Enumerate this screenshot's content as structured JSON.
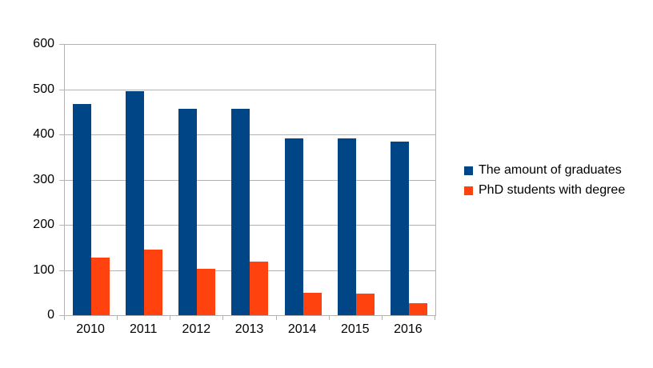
{
  "chart_data": {
    "type": "bar",
    "title": "",
    "xlabel": "",
    "ylabel": "",
    "categories": [
      "2010",
      "2011",
      "2012",
      "2013",
      "2014",
      "2015",
      "2016"
    ],
    "series": [
      {
        "name": "The amount of graduates",
        "color": "#004586",
        "values": [
          467,
          495,
          457,
          457,
          391,
          391,
          384
        ]
      },
      {
        "name": "PhD students with degree",
        "color": "#FF420E",
        "values": [
          127,
          146,
          102,
          119,
          50,
          48,
          27
        ]
      }
    ],
    "ylim": [
      0,
      600
    ],
    "yticks": [
      0,
      100,
      200,
      300,
      400,
      500,
      600
    ],
    "grid": true,
    "legend_position": "right",
    "grid_color": "#B3B3B3",
    "text_color": "#000000",
    "background_color": "#FFFFFF"
  }
}
